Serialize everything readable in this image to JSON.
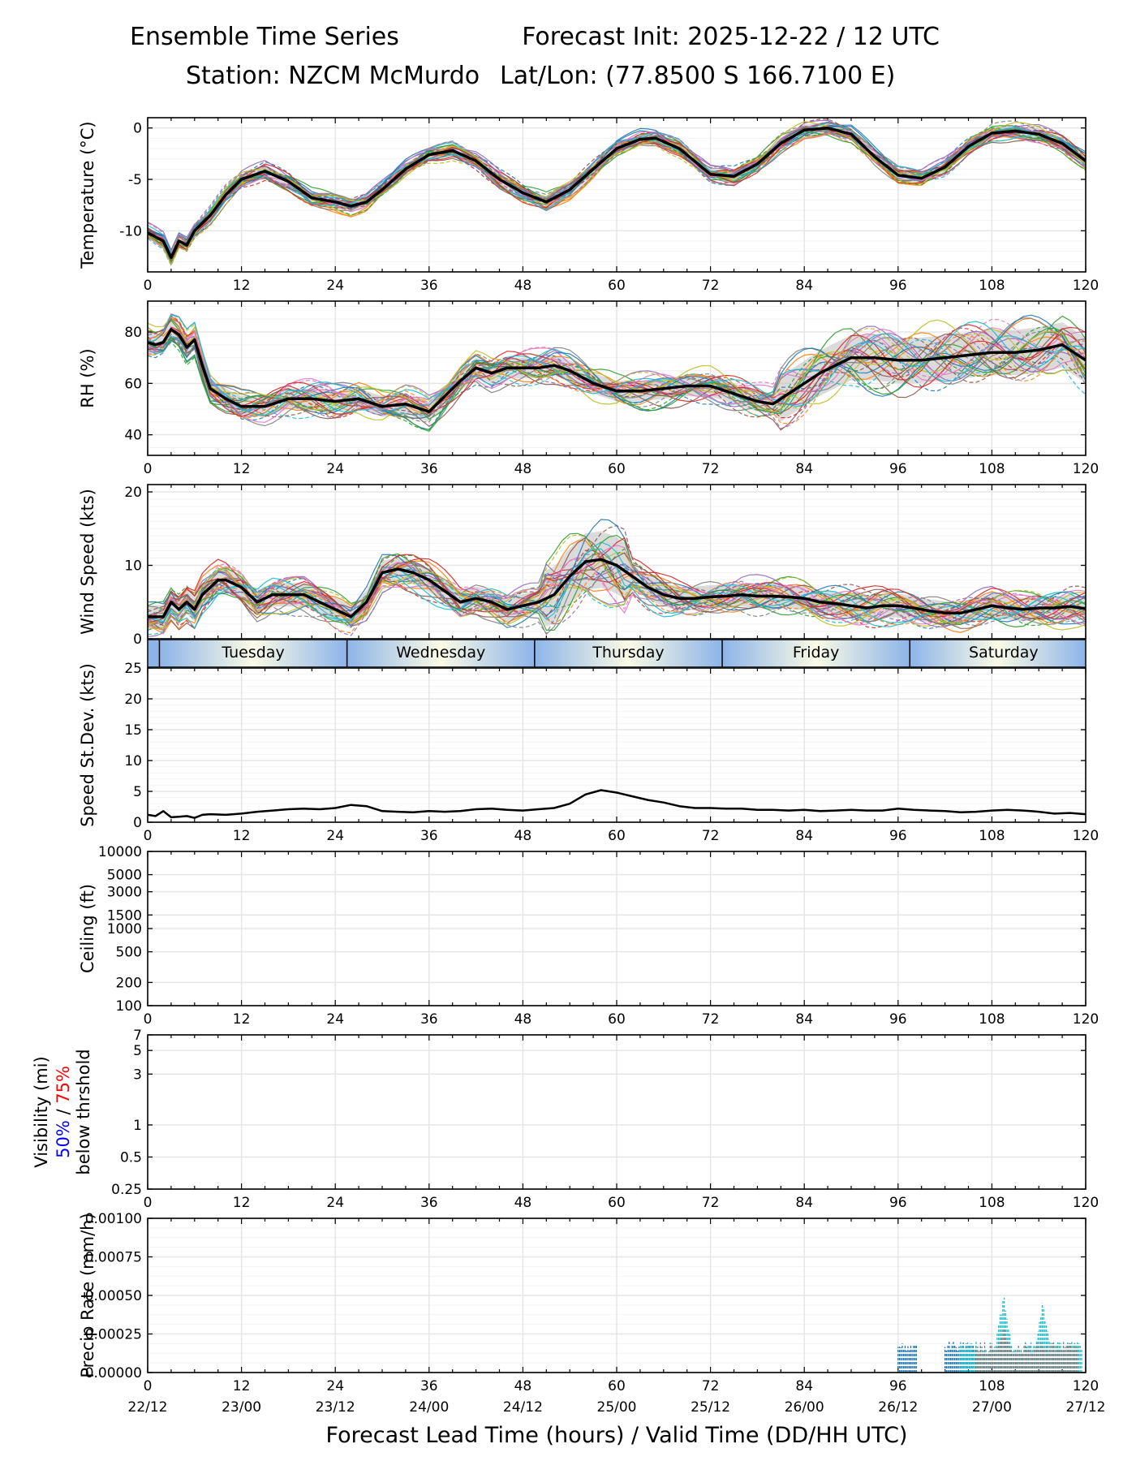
{
  "header": {
    "title_left": "Ensemble Time Series",
    "title_right": "Forecast Init: 2025-12-22 / 12 UTC",
    "station": "Station: NZCM McMurdo",
    "latlon": "Lat/Lon: (77.8500 S 166.7100 E)"
  },
  "colors": {
    "members": [
      "#1f77b4",
      "#ff7f0e",
      "#2ca02c",
      "#d62728",
      "#9467bd",
      "#8c564b",
      "#e377c2",
      "#7f7f7f",
      "#bcbd22",
      "#17becf"
    ],
    "spread_fill": "#bdbdbd",
    "mean": "#000000",
    "grid": "#e6e6e6",
    "day_band": "#8db4e8",
    "day_band_light": "#fafae6",
    "vis50": "#0000ff",
    "vis75": "#ff0000",
    "precip_dark": "#1f77b4",
    "precip_cyan": "#17becf",
    "precip_grey": "#7f7f7f"
  },
  "x_axis": {
    "label": "Forecast Lead Time (hours) / Valid Time (DD/HH UTC)",
    "range": [
      0,
      120
    ],
    "ticks": [
      "0",
      "12",
      "24",
      "36",
      "48",
      "60",
      "72",
      "84",
      "96",
      "108",
      "120"
    ],
    "valid_times": [
      "22/12",
      "23/00",
      "23/12",
      "24/00",
      "24/12",
      "25/00",
      "25/12",
      "26/00",
      "26/12",
      "27/00",
      "27/12"
    ]
  },
  "day_labels": [
    "Tuesday",
    "Wednesday",
    "Thursday",
    "Friday",
    "Saturday"
  ],
  "chart_data": [
    {
      "type": "line",
      "ylabel": "Temperature (°C)",
      "ylim": [
        -14,
        1
      ],
      "yticks": [
        "0",
        "-5",
        "-10"
      ],
      "ytick_values": [
        0,
        -5,
        -10
      ],
      "ensemble_members": 30,
      "x": [
        0,
        2,
        3,
        4,
        5,
        6,
        8,
        10,
        12,
        15,
        18,
        21,
        24,
        26,
        28,
        30,
        33,
        36,
        39,
        42,
        45,
        48,
        51,
        54,
        57,
        60,
        63,
        65,
        68,
        72,
        75,
        78,
        81,
        84,
        87,
        90,
        93,
        96,
        99,
        102,
        105,
        108,
        111,
        114,
        117,
        120
      ],
      "series": [
        {
          "name": "ensemble mean",
          "values": [
            -10.2,
            -11,
            -12.6,
            -11,
            -11.4,
            -10,
            -8.5,
            -6.5,
            -5,
            -4.2,
            -5.2,
            -6.8,
            -7.2,
            -7.6,
            -7.2,
            -6,
            -4,
            -2.6,
            -2.2,
            -3.2,
            -5,
            -6.3,
            -7.2,
            -6,
            -4,
            -2,
            -1.1,
            -1,
            -2,
            -4.5,
            -4.7,
            -3.5,
            -1.5,
            -0.2,
            0,
            -0.6,
            -2.8,
            -4.6,
            -4.9,
            -3.8,
            -1.8,
            -0.5,
            -0.3,
            -0.6,
            -1.5,
            -3.2
          ]
        }
      ]
    },
    {
      "type": "line",
      "ylabel": "RH (%)",
      "ylim": [
        32,
        92
      ],
      "yticks": [
        "80",
        "60",
        "40"
      ],
      "ytick_values": [
        80,
        60,
        40
      ],
      "ensemble_members": 30,
      "x": [
        0,
        1,
        2,
        3,
        4,
        5,
        6,
        7,
        8,
        10,
        12,
        15,
        18,
        21,
        24,
        27,
        30,
        33,
        36,
        38,
        40,
        42,
        44,
        46,
        48,
        50,
        52,
        54,
        57,
        60,
        63,
        66,
        69,
        72,
        75,
        78,
        80,
        82,
        84,
        86,
        88,
        90,
        93,
        96,
        99,
        102,
        105,
        108,
        111,
        114,
        117,
        120
      ],
      "series": [
        {
          "name": "ensemble mean",
          "values": [
            76,
            75,
            76,
            81,
            79,
            74,
            77,
            67,
            58,
            54,
            51,
            51,
            54,
            54,
            53,
            54,
            51,
            52,
            49,
            55,
            61,
            66,
            64,
            66,
            66,
            66,
            67,
            65,
            60,
            57,
            57,
            58,
            59,
            59,
            56,
            53,
            52,
            56,
            60,
            64,
            67,
            70,
            70,
            69,
            69,
            70,
            71,
            72,
            72,
            73,
            75,
            69
          ]
        }
      ]
    },
    {
      "type": "line",
      "ylabel": "Wind Speed (kts)",
      "ylim": [
        0,
        21
      ],
      "yticks": [
        "20",
        "10",
        "0"
      ],
      "ytick_values": [
        20,
        10,
        0
      ],
      "ensemble_members": 30,
      "x": [
        0,
        1,
        2,
        3,
        4,
        5,
        6,
        7,
        8,
        9,
        10,
        12,
        14,
        16,
        18,
        20,
        22,
        24,
        26,
        28,
        30,
        32,
        34,
        36,
        38,
        40,
        42,
        44,
        46,
        48,
        50,
        52,
        54,
        56,
        58,
        60,
        62,
        64,
        66,
        68,
        70,
        72,
        74,
        76,
        78,
        80,
        82,
        84,
        86,
        88,
        90,
        92,
        94,
        96,
        98,
        100,
        102,
        104,
        106,
        108,
        110,
        112,
        114,
        116,
        118,
        120
      ],
      "series": [
        {
          "name": "ensemble mean",
          "values": [
            3,
            3,
            3,
            5,
            4,
            5,
            4,
            6,
            7,
            8,
            8,
            7,
            5,
            6,
            6,
            6,
            5,
            4,
            3,
            5,
            9,
            9.5,
            9,
            8,
            6.5,
            5,
            5.5,
            5,
            4,
            4.5,
            5,
            6,
            8.5,
            10.5,
            10.8,
            10,
            8.5,
            7,
            6,
            5.5,
            5.5,
            5.7,
            5.8,
            6,
            5.8,
            5.8,
            5.7,
            5.5,
            5,
            4.8,
            4.5,
            4.2,
            4.5,
            4.5,
            4.2,
            3.8,
            3.5,
            3.5,
            4,
            4.5,
            4.2,
            4,
            4.2,
            4.2,
            4.4,
            4.1
          ]
        }
      ]
    },
    {
      "type": "line",
      "ylabel": "Speed St.Dev. (kts)",
      "ylim": [
        0,
        25
      ],
      "yticks": [
        "25",
        "20",
        "15",
        "10",
        "5",
        "0"
      ],
      "ytick_values": [
        25,
        20,
        15,
        10,
        5,
        0
      ],
      "x": [
        0,
        1,
        2,
        3,
        4,
        5,
        6,
        7,
        8,
        10,
        12,
        14,
        16,
        18,
        20,
        22,
        24,
        26,
        28,
        30,
        32,
        34,
        36,
        38,
        40,
        42,
        44,
        46,
        48,
        50,
        52,
        54,
        56,
        58,
        60,
        62,
        64,
        66,
        68,
        70,
        72,
        74,
        76,
        78,
        80,
        82,
        84,
        86,
        88,
        90,
        92,
        94,
        96,
        98,
        100,
        102,
        104,
        106,
        108,
        110,
        112,
        114,
        116,
        118,
        120
      ],
      "series": [
        {
          "name": "speed standard deviation",
          "values": [
            1.2,
            1,
            1.8,
            0.8,
            0.9,
            1,
            0.7,
            1.2,
            1.3,
            1.2,
            1.4,
            1.7,
            1.9,
            2.1,
            2.2,
            2.1,
            2.3,
            2.8,
            2.6,
            1.8,
            1.7,
            1.6,
            1.8,
            1.7,
            1.8,
            2.1,
            2.2,
            2,
            1.9,
            2.1,
            2.3,
            3,
            4.5,
            5.2,
            4.8,
            4.2,
            3.6,
            3.2,
            2.6,
            2.3,
            2.3,
            2.2,
            2.2,
            2,
            2,
            1.9,
            2,
            1.8,
            1.9,
            2,
            1.9,
            1.9,
            2.2,
            2,
            1.9,
            1.8,
            1.6,
            1.7,
            1.9,
            2,
            1.9,
            1.7,
            1.4,
            1.5,
            1.3
          ]
        }
      ]
    },
    {
      "type": "line",
      "ylabel": "Ceiling (ft)",
      "yscale": "log",
      "ylim": [
        100,
        10000
      ],
      "yticks": [
        "10000",
        "5000",
        "3000",
        "1500",
        "1000",
        "500",
        "200",
        "100"
      ],
      "ytick_values": [
        10000,
        5000,
        3000,
        1500,
        1000,
        500,
        200,
        100
      ],
      "series": []
    },
    {
      "type": "line",
      "ylabel_line1": "Visibility (mi)",
      "ylabel_50": "50%",
      "ylabel_sep": " / ",
      "ylabel_75": "75%",
      "ylabel_line3": "below thrshold",
      "yscale": "log",
      "ylim": [
        0.25,
        7
      ],
      "yticks": [
        "7",
        "5",
        "3",
        "1",
        "0.5",
        "0.25"
      ],
      "ytick_values": [
        7,
        5,
        3,
        1,
        0.5,
        0.25
      ],
      "series": []
    },
    {
      "type": "bar",
      "ylabel": "Precip Rate (mm/h)",
      "ylim": [
        0,
        0.001
      ],
      "yticks": [
        "0.00100",
        "0.00075",
        "0.00050",
        "0.00025",
        "0.00000"
      ],
      "ytick_values": [
        0.001,
        0.00075,
        0.0005,
        0.00025,
        0
      ],
      "series": [
        {
          "name": "member group A",
          "x_range": [
            96,
            98.5
          ],
          "max_value": 0.0002
        },
        {
          "name": "member group B",
          "x_range": [
            102,
            106
          ],
          "max_value": 0.0002
        },
        {
          "name": "member group C",
          "x_range": [
            104,
            119.5
          ],
          "max_value": 0.00053,
          "peaks": [
            [
              109.5,
              0.00053
            ],
            [
              114.5,
              0.00047
            ]
          ]
        },
        {
          "name": "member group D",
          "x_range": [
            106,
            119
          ],
          "max_value": 0.00032,
          "peaks": [
            [
              109.5,
              0.00032
            ]
          ]
        }
      ]
    }
  ]
}
